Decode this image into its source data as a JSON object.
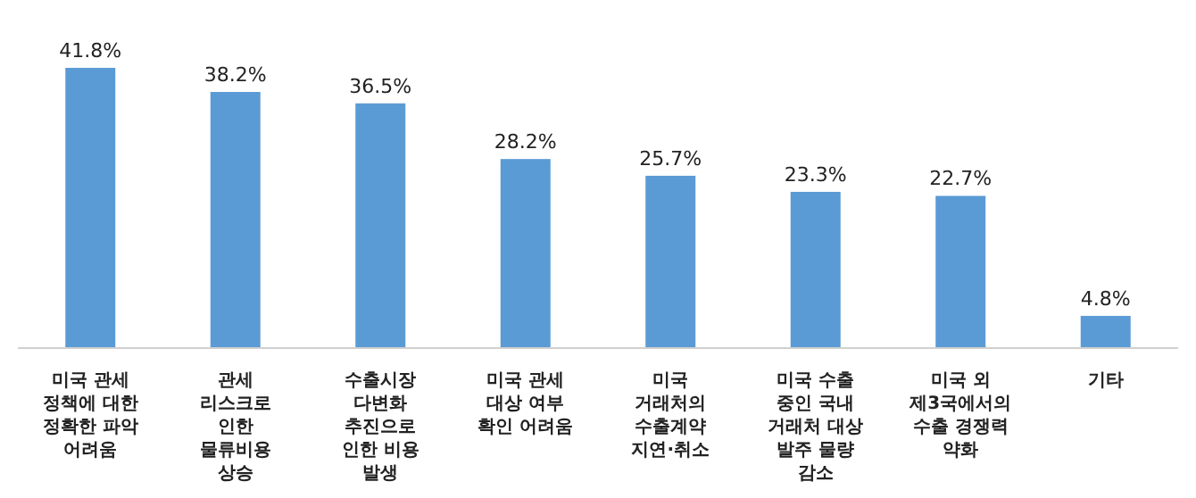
{
  "chart_data": {
    "type": "bar",
    "categories": [
      "미국 관세\n정책에 대한\n정확한 파악\n어려움",
      "관세\n리스크로\n인한\n물류비용\n상승",
      "수출시장\n다변화\n추진으로\n인한 비용\n발생",
      "미국 관세\n대상 여부\n확인 어려움",
      "미국\n거래처의\n수출계약\n지연·취소",
      "미국 수출\n중인 국내\n거래처 대상\n발주 물량\n감소",
      "미국 외\n제3국에서의\n수출 경쟁력\n약화",
      "기타"
    ],
    "values": [
      41.8,
      38.2,
      36.5,
      28.2,
      25.7,
      23.3,
      22.7,
      4.8
    ],
    "value_labels": [
      "41.8%",
      "38.2%",
      "36.5%",
      "28.2%",
      "25.7%",
      "23.3%",
      "22.7%",
      "4.8%"
    ],
    "color": "#5b9bd5"
  }
}
